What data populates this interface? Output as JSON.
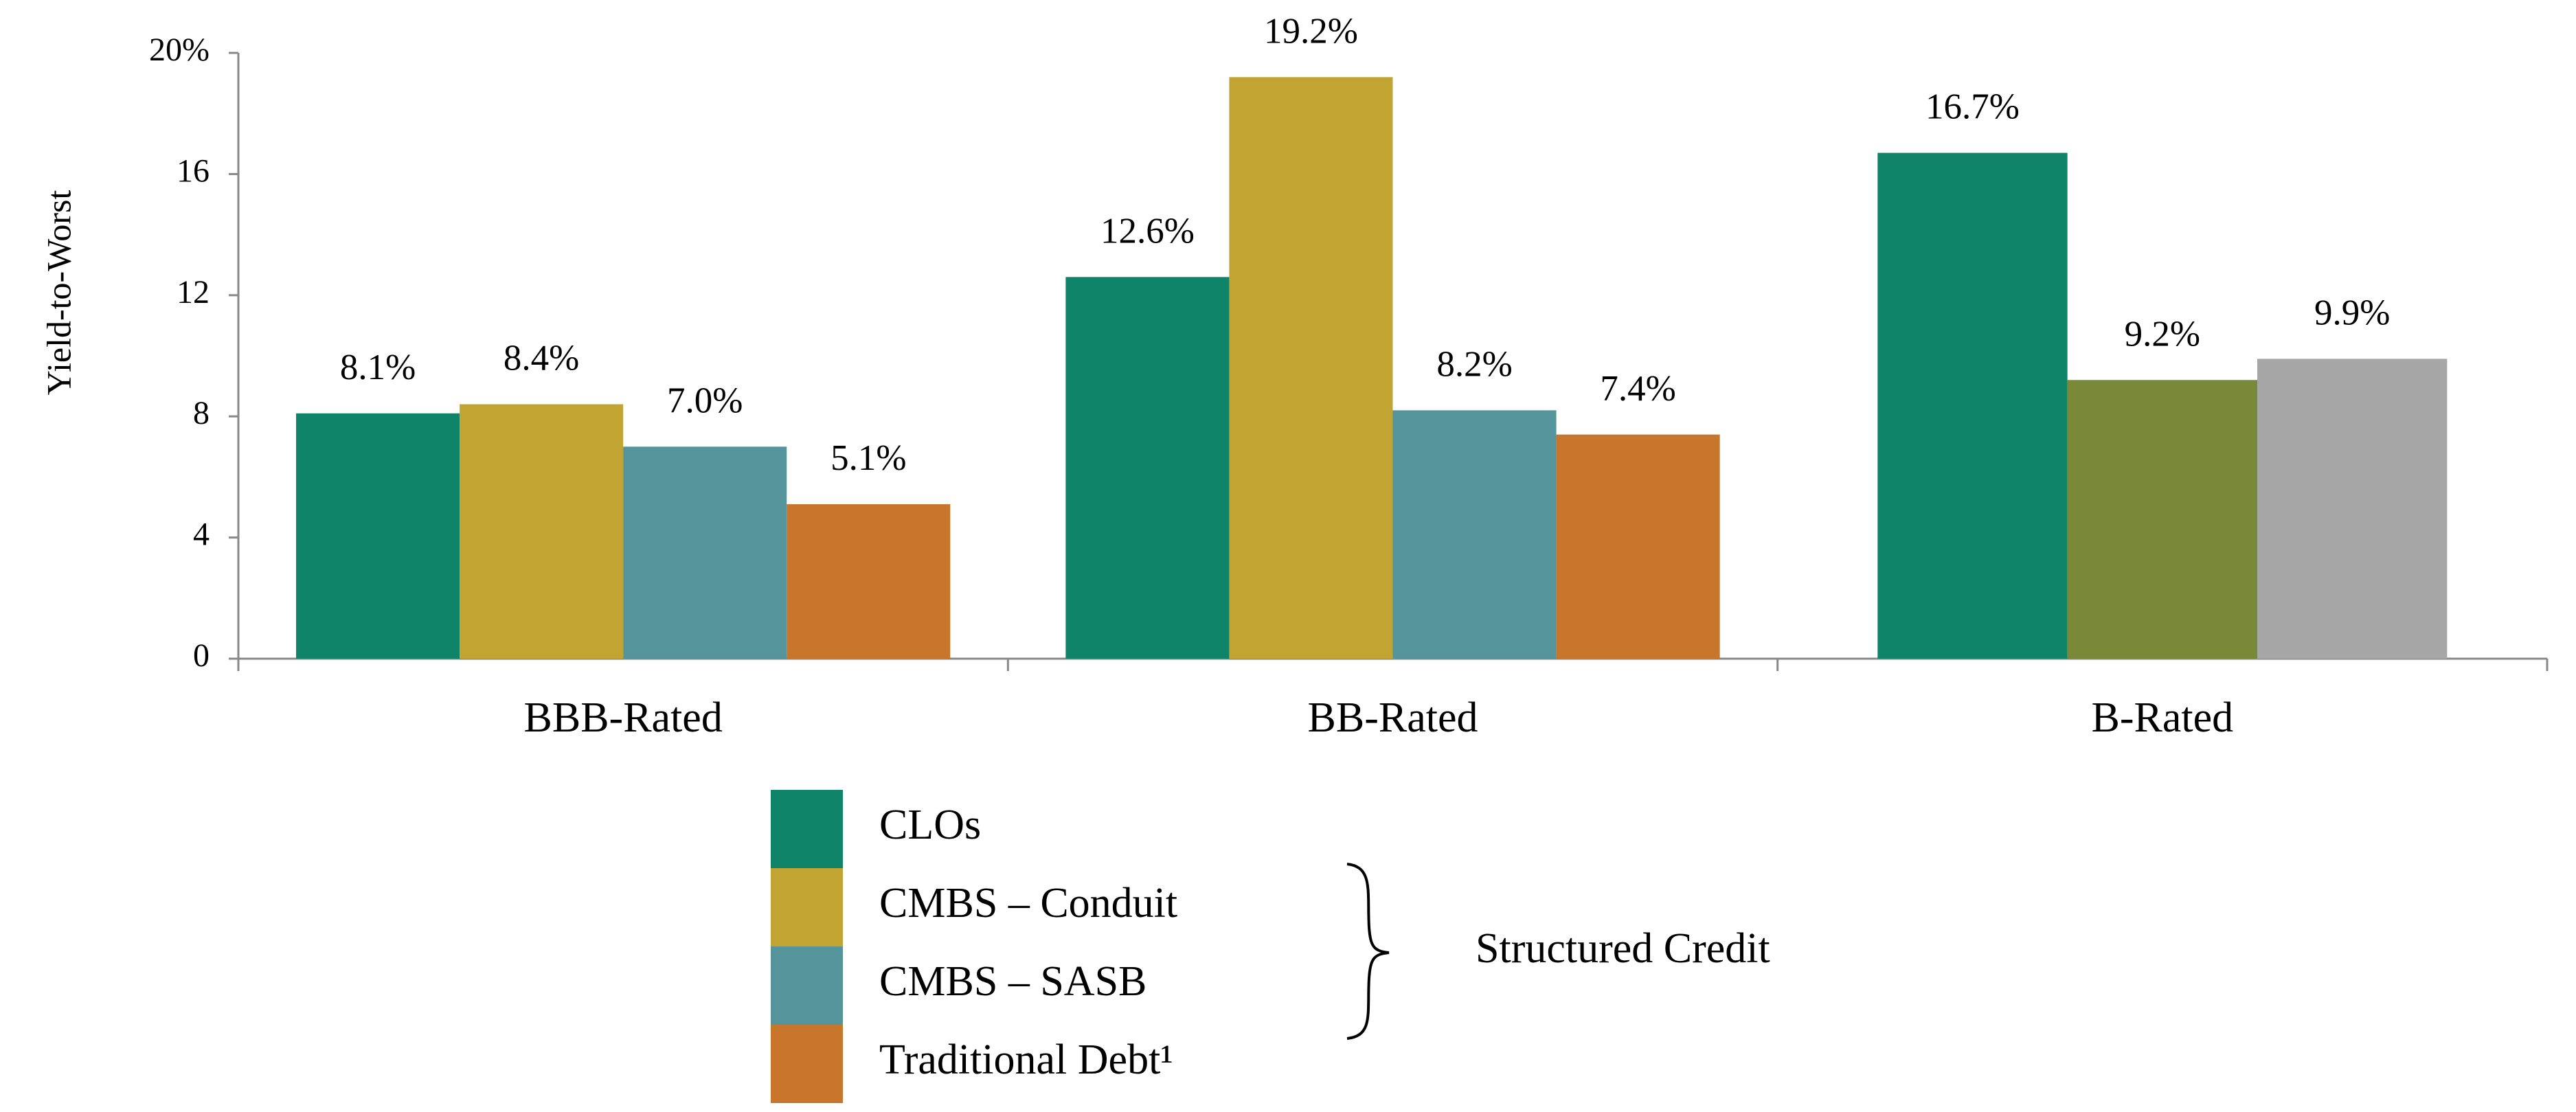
{
  "chart_data": {
    "type": "bar",
    "y_label": "Yield-to-Worst",
    "categories": [
      "BBB-Rated",
      "BB-Rated",
      "B-Rated"
    ],
    "series": [
      {
        "name": "CLOs",
        "color": "#0f8468",
        "colors": [
          "#0f8468",
          "#0f8468",
          "#0f8468"
        ],
        "values": [
          8.1,
          12.6,
          16.7
        ],
        "value_labels": [
          "8.1%",
          "12.6%",
          "16.7%"
        ]
      },
      {
        "name": "CMBS – Conduit",
        "color": "#c1a431",
        "colors": [
          "#c1a431",
          "#c1a431",
          "#798938"
        ],
        "values": [
          8.4,
          19.2,
          9.2
        ],
        "value_labels": [
          "8.4%",
          "19.2%",
          "9.2%"
        ]
      },
      {
        "name": "CMBS – SASB",
        "color": "#56949b",
        "colors": [
          "#56949b",
          "#56949b",
          "#a6a6a6"
        ],
        "values": [
          7.0,
          8.2,
          9.9
        ],
        "value_labels": [
          "7.0%",
          "8.2%",
          "9.9%"
        ]
      },
      {
        "name": "Traditional Debt¹",
        "color": "#c8762b",
        "colors": [
          "#c8762b",
          "#c8762b",
          null
        ],
        "values": [
          5.1,
          7.4,
          null
        ],
        "value_labels": [
          "5.1%",
          "7.4%",
          null
        ]
      }
    ],
    "ylim": [
      0,
      20
    ],
    "yticks": [
      0,
      4,
      8,
      12,
      16,
      {
        "value": 20,
        "label": "20%"
      }
    ],
    "legend_group_label": "Structured Credit"
  }
}
